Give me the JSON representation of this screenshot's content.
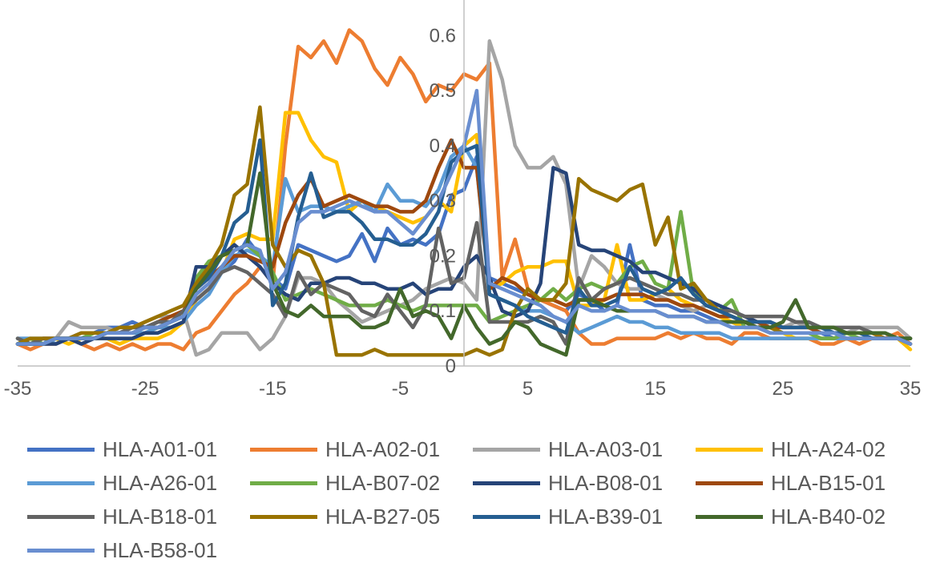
{
  "chart_data": {
    "type": "line",
    "xlim": [
      -35,
      35
    ],
    "ylim": [
      0,
      0.65
    ],
    "x_ticks": [
      -35,
      -25,
      -15,
      -5,
      5,
      15,
      25,
      35
    ],
    "x_tick_labels": [
      "-35",
      "-25",
      "-15",
      "-5",
      "5",
      "15",
      "25",
      "35"
    ],
    "y_ticks": [
      0,
      0.1,
      0.2,
      0.3,
      0.4,
      0.5,
      0.6
    ],
    "y_tick_labels": [
      "0",
      "0.1",
      "0.2",
      "0.3",
      "0.4",
      "0.5",
      "0.6"
    ],
    "grid": false,
    "legend_position": "bottom",
    "x": [
      -35,
      -34,
      -33,
      -32,
      -31,
      -30,
      -29,
      -28,
      -27,
      -26,
      -25,
      -24,
      -23,
      -22,
      -21,
      -20,
      -19,
      -18,
      -17,
      -16,
      -15,
      -14,
      -13,
      -12,
      -11,
      -10,
      -9,
      -8,
      -7,
      -6,
      -5,
      -4,
      -3,
      -2,
      -1,
      0,
      1,
      2,
      3,
      4,
      5,
      6,
      7,
      8,
      9,
      10,
      11,
      12,
      13,
      14,
      15,
      16,
      17,
      18,
      19,
      20,
      21,
      22,
      23,
      24,
      25,
      26,
      27,
      28,
      29,
      30,
      31,
      32,
      33,
      34,
      35
    ],
    "series": [
      {
        "name": "HLA-A01-01",
        "color": "#4472C4",
        "values": [
          0.05,
          0.04,
          0.05,
          0.05,
          0.05,
          0.06,
          0.06,
          0.07,
          0.07,
          0.08,
          0.07,
          0.08,
          0.08,
          0.09,
          0.12,
          0.14,
          0.17,
          0.19,
          0.23,
          0.2,
          0.16,
          0.14,
          0.22,
          0.21,
          0.2,
          0.19,
          0.2,
          0.24,
          0.19,
          0.25,
          0.22,
          0.23,
          0.22,
          0.24,
          0.31,
          0.32,
          0.38,
          0.16,
          0.15,
          0.14,
          0.13,
          0.12,
          0.11,
          0.1,
          0.13,
          0.12,
          0.1,
          0.11,
          0.22,
          0.12,
          0.11,
          0.11,
          0.1,
          0.1,
          0.09,
          0.08,
          0.08,
          0.07,
          0.07,
          0.06,
          0.06,
          0.06,
          0.06,
          0.06,
          0.05,
          0.05,
          0.05,
          0.05,
          0.05,
          0.05,
          0.04
        ]
      },
      {
        "name": "HLA-A02-01",
        "color": "#ED7D31",
        "values": [
          0.04,
          0.03,
          0.04,
          0.04,
          0.05,
          0.04,
          0.03,
          0.04,
          0.03,
          0.04,
          0.03,
          0.04,
          0.04,
          0.03,
          0.06,
          0.07,
          0.1,
          0.13,
          0.15,
          0.18,
          0.15,
          0.4,
          0.58,
          0.56,
          0.59,
          0.55,
          0.61,
          0.59,
          0.54,
          0.51,
          0.56,
          0.53,
          0.48,
          0.51,
          0.5,
          0.53,
          0.52,
          0.55,
          0.16,
          0.23,
          0.14,
          0.12,
          0.11,
          0.1,
          0.06,
          0.04,
          0.04,
          0.05,
          0.05,
          0.05,
          0.05,
          0.06,
          0.05,
          0.06,
          0.05,
          0.05,
          0.04,
          0.06,
          0.06,
          0.05,
          0.05,
          0.05,
          0.05,
          0.04,
          0.04,
          0.05,
          0.04,
          0.05,
          0.05,
          0.06,
          0.04
        ]
      },
      {
        "name": "HLA-A03-01",
        "color": "#A5A5A5",
        "values": [
          0.05,
          0.05,
          0.05,
          0.05,
          0.08,
          0.07,
          0.07,
          0.07,
          0.06,
          0.07,
          0.08,
          0.09,
          0.09,
          0.1,
          0.02,
          0.03,
          0.06,
          0.06,
          0.06,
          0.03,
          0.05,
          0.09,
          0.16,
          0.16,
          0.15,
          0.12,
          0.1,
          0.08,
          0.09,
          0.1,
          0.11,
          0.12,
          0.14,
          0.15,
          0.16,
          0.15,
          0.12,
          0.59,
          0.52,
          0.4,
          0.36,
          0.36,
          0.38,
          0.33,
          0.14,
          0.2,
          0.18,
          0.15,
          0.14,
          0.14,
          0.13,
          0.12,
          0.11,
          0.1,
          0.11,
          0.1,
          0.09,
          0.08,
          0.07,
          0.08,
          0.07,
          0.08,
          0.07,
          0.07,
          0.07,
          0.06,
          0.07,
          0.07,
          0.07,
          0.07,
          0.05
        ]
      },
      {
        "name": "HLA-A24-02",
        "color": "#FFC000",
        "values": [
          0.05,
          0.04,
          0.04,
          0.05,
          0.04,
          0.05,
          0.05,
          0.05,
          0.04,
          0.05,
          0.05,
          0.05,
          0.06,
          0.08,
          0.12,
          0.14,
          0.17,
          0.23,
          0.24,
          0.23,
          0.23,
          0.46,
          0.46,
          0.41,
          0.38,
          0.37,
          0.28,
          0.3,
          0.29,
          0.28,
          0.27,
          0.26,
          0.27,
          0.3,
          0.28,
          0.4,
          0.42,
          0.14,
          0.15,
          0.17,
          0.18,
          0.18,
          0.19,
          0.19,
          0.11,
          0.11,
          0.12,
          0.22,
          0.12,
          0.12,
          0.13,
          0.14,
          0.12,
          0.11,
          0.1,
          0.09,
          0.08,
          0.07,
          0.07,
          0.06,
          0.06,
          0.05,
          0.05,
          0.05,
          0.05,
          0.05,
          0.05,
          0.05,
          0.05,
          0.05,
          0.03
        ]
      },
      {
        "name": "HLA-A26-01",
        "color": "#5B9BD5",
        "values": [
          0.05,
          0.05,
          0.05,
          0.04,
          0.05,
          0.05,
          0.06,
          0.06,
          0.06,
          0.06,
          0.06,
          0.07,
          0.07,
          0.08,
          0.11,
          0.13,
          0.17,
          0.2,
          0.21,
          0.2,
          0.18,
          0.34,
          0.28,
          0.29,
          0.29,
          0.28,
          0.29,
          0.3,
          0.28,
          0.33,
          0.3,
          0.3,
          0.29,
          0.32,
          0.38,
          0.4,
          0.36,
          0.13,
          0.12,
          0.11,
          0.1,
          0.1,
          0.09,
          0.08,
          0.06,
          0.07,
          0.08,
          0.09,
          0.08,
          0.08,
          0.07,
          0.07,
          0.06,
          0.06,
          0.06,
          0.06,
          0.05,
          0.05,
          0.05,
          0.05,
          0.05,
          0.05,
          0.05,
          0.05,
          0.05,
          0.05,
          0.05,
          0.05,
          0.05,
          0.05,
          0.05
        ]
      },
      {
        "name": "HLA-B07-02",
        "color": "#70AD47",
        "values": [
          0.04,
          0.05,
          0.04,
          0.05,
          0.05,
          0.05,
          0.06,
          0.06,
          0.06,
          0.07,
          0.07,
          0.07,
          0.08,
          0.09,
          0.16,
          0.19,
          0.2,
          0.21,
          0.22,
          0.2,
          0.17,
          0.12,
          0.13,
          0.14,
          0.13,
          0.12,
          0.11,
          0.11,
          0.11,
          0.12,
          0.11,
          0.1,
          0.11,
          0.11,
          0.11,
          0.11,
          0.11,
          0.08,
          0.09,
          0.1,
          0.11,
          0.12,
          0.14,
          0.12,
          0.14,
          0.15,
          0.14,
          0.15,
          0.18,
          0.19,
          0.15,
          0.14,
          0.28,
          0.13,
          0.12,
          0.1,
          0.12,
          0.07,
          0.07,
          0.07,
          0.06,
          0.06,
          0.06,
          0.05,
          0.05,
          0.06,
          0.05,
          0.05,
          0.05,
          0.05,
          0.05
        ]
      },
      {
        "name": "HLA-B08-01",
        "color": "#264478",
        "values": [
          0.04,
          0.04,
          0.04,
          0.04,
          0.05,
          0.04,
          0.05,
          0.05,
          0.05,
          0.05,
          0.06,
          0.06,
          0.07,
          0.08,
          0.18,
          0.18,
          0.2,
          0.22,
          0.2,
          0.18,
          0.15,
          0.13,
          0.12,
          0.15,
          0.15,
          0.16,
          0.16,
          0.15,
          0.15,
          0.14,
          0.14,
          0.15,
          0.13,
          0.14,
          0.14,
          0.18,
          0.2,
          0.16,
          0.1,
          0.09,
          0.1,
          0.15,
          0.36,
          0.35,
          0.22,
          0.21,
          0.21,
          0.2,
          0.19,
          0.17,
          0.17,
          0.16,
          0.15,
          0.14,
          0.12,
          0.11,
          0.1,
          0.09,
          0.08,
          0.08,
          0.07,
          0.07,
          0.07,
          0.07,
          0.06,
          0.06,
          0.06,
          0.06,
          0.05,
          0.05,
          0.04
        ]
      },
      {
        "name": "HLA-B15-01",
        "color": "#9E480E",
        "values": [
          0.04,
          0.04,
          0.05,
          0.05,
          0.05,
          0.05,
          0.05,
          0.06,
          0.06,
          0.07,
          0.07,
          0.08,
          0.09,
          0.1,
          0.14,
          0.16,
          0.18,
          0.2,
          0.2,
          0.19,
          0.18,
          0.26,
          0.31,
          0.34,
          0.29,
          0.3,
          0.31,
          0.3,
          0.29,
          0.29,
          0.28,
          0.28,
          0.3,
          0.36,
          0.41,
          0.36,
          0.36,
          0.14,
          0.16,
          0.15,
          0.13,
          0.12,
          0.12,
          0.11,
          0.12,
          0.12,
          0.12,
          0.13,
          0.13,
          0.13,
          0.12,
          0.12,
          0.11,
          0.11,
          0.1,
          0.09,
          0.09,
          0.08,
          0.08,
          0.07,
          0.07,
          0.07,
          0.07,
          0.06,
          0.06,
          0.06,
          0.06,
          0.06,
          0.05,
          0.05,
          0.04
        ]
      },
      {
        "name": "HLA-B18-01",
        "color": "#636363",
        "values": [
          0.05,
          0.04,
          0.05,
          0.05,
          0.05,
          0.05,
          0.05,
          0.06,
          0.06,
          0.07,
          0.07,
          0.08,
          0.08,
          0.1,
          0.12,
          0.14,
          0.17,
          0.18,
          0.17,
          0.15,
          0.13,
          0.09,
          0.17,
          0.13,
          0.15,
          0.14,
          0.13,
          0.1,
          0.09,
          0.13,
          0.1,
          0.07,
          0.11,
          0.25,
          0.15,
          0.16,
          0.26,
          0.08,
          0.08,
          0.08,
          0.08,
          0.09,
          0.08,
          0.04,
          0.16,
          0.12,
          0.14,
          0.15,
          0.16,
          0.15,
          0.14,
          0.13,
          0.13,
          0.12,
          0.12,
          0.1,
          0.1,
          0.09,
          0.09,
          0.09,
          0.09,
          0.08,
          0.08,
          0.07,
          0.07,
          0.07,
          0.07,
          0.06,
          0.06,
          0.05,
          0.05
        ]
      },
      {
        "name": "HLA-B27-05",
        "color": "#997300",
        "values": [
          0.04,
          0.05,
          0.05,
          0.05,
          0.05,
          0.06,
          0.06,
          0.06,
          0.07,
          0.07,
          0.08,
          0.09,
          0.1,
          0.11,
          0.15,
          0.18,
          0.22,
          0.31,
          0.33,
          0.47,
          0.22,
          0.18,
          0.21,
          0.2,
          0.15,
          0.02,
          0.02,
          0.02,
          0.03,
          0.02,
          0.02,
          0.02,
          0.02,
          0.02,
          0.02,
          0.02,
          0.03,
          0.02,
          0.03,
          0.1,
          0.14,
          0.12,
          0.12,
          0.15,
          0.34,
          0.32,
          0.31,
          0.3,
          0.32,
          0.33,
          0.22,
          0.27,
          0.14,
          0.15,
          0.12,
          0.1,
          0.09,
          0.08,
          0.07,
          0.07,
          0.06,
          0.06,
          0.06,
          0.06,
          0.06,
          0.06,
          0.06,
          0.06,
          0.05,
          0.05,
          0.05
        ]
      },
      {
        "name": "HLA-B39-01",
        "color": "#255E91",
        "values": [
          0.04,
          0.04,
          0.04,
          0.05,
          0.05,
          0.05,
          0.05,
          0.06,
          0.06,
          0.06,
          0.07,
          0.07,
          0.08,
          0.09,
          0.14,
          0.16,
          0.2,
          0.26,
          0.28,
          0.41,
          0.11,
          0.15,
          0.27,
          0.35,
          0.27,
          0.28,
          0.28,
          0.26,
          0.23,
          0.23,
          0.22,
          0.22,
          0.24,
          0.28,
          0.37,
          0.39,
          0.4,
          0.13,
          0.12,
          0.11,
          0.09,
          0.08,
          0.07,
          0.06,
          0.14,
          0.11,
          0.11,
          0.12,
          0.18,
          0.14,
          0.13,
          0.14,
          0.16,
          0.13,
          0.11,
          0.1,
          0.09,
          0.08,
          0.08,
          0.08,
          0.07,
          0.07,
          0.07,
          0.07,
          0.06,
          0.06,
          0.06,
          0.05,
          0.05,
          0.05,
          0.05
        ]
      },
      {
        "name": "HLA-B40-02",
        "color": "#43682B",
        "values": [
          0.04,
          0.04,
          0.04,
          0.05,
          0.05,
          0.05,
          0.05,
          0.06,
          0.06,
          0.06,
          0.07,
          0.07,
          0.08,
          0.09,
          0.14,
          0.17,
          0.2,
          0.21,
          0.22,
          0.35,
          0.15,
          0.1,
          0.09,
          0.11,
          0.09,
          0.09,
          0.09,
          0.07,
          0.07,
          0.08,
          0.14,
          0.09,
          0.1,
          0.09,
          0.05,
          0.11,
          0.07,
          0.04,
          0.05,
          0.08,
          0.07,
          0.04,
          0.03,
          0.02,
          0.12,
          0.12,
          0.11,
          0.1,
          0.1,
          0.1,
          0.1,
          0.09,
          0.09,
          0.09,
          0.08,
          0.08,
          0.08,
          0.08,
          0.07,
          0.07,
          0.08,
          0.12,
          0.07,
          0.07,
          0.07,
          0.06,
          0.06,
          0.06,
          0.06,
          0.05,
          0.05
        ]
      },
      {
        "name": "HLA-B58-01",
        "color": "#698ED0",
        "values": [
          0.04,
          0.04,
          0.04,
          0.05,
          0.05,
          0.05,
          0.05,
          0.06,
          0.06,
          0.06,
          0.07,
          0.07,
          0.08,
          0.09,
          0.13,
          0.15,
          0.18,
          0.21,
          0.22,
          0.21,
          0.14,
          0.17,
          0.26,
          0.28,
          0.28,
          0.29,
          0.3,
          0.29,
          0.28,
          0.28,
          0.26,
          0.24,
          0.27,
          0.3,
          0.35,
          0.4,
          0.5,
          0.15,
          0.14,
          0.13,
          0.12,
          0.11,
          0.09,
          0.08,
          0.11,
          0.1,
          0.1,
          0.11,
          0.1,
          0.1,
          0.1,
          0.09,
          0.09,
          0.09,
          0.08,
          0.08,
          0.07,
          0.07,
          0.07,
          0.06,
          0.06,
          0.06,
          0.06,
          0.06,
          0.06,
          0.05,
          0.05,
          0.05,
          0.05,
          0.05,
          0.04
        ]
      }
    ]
  }
}
